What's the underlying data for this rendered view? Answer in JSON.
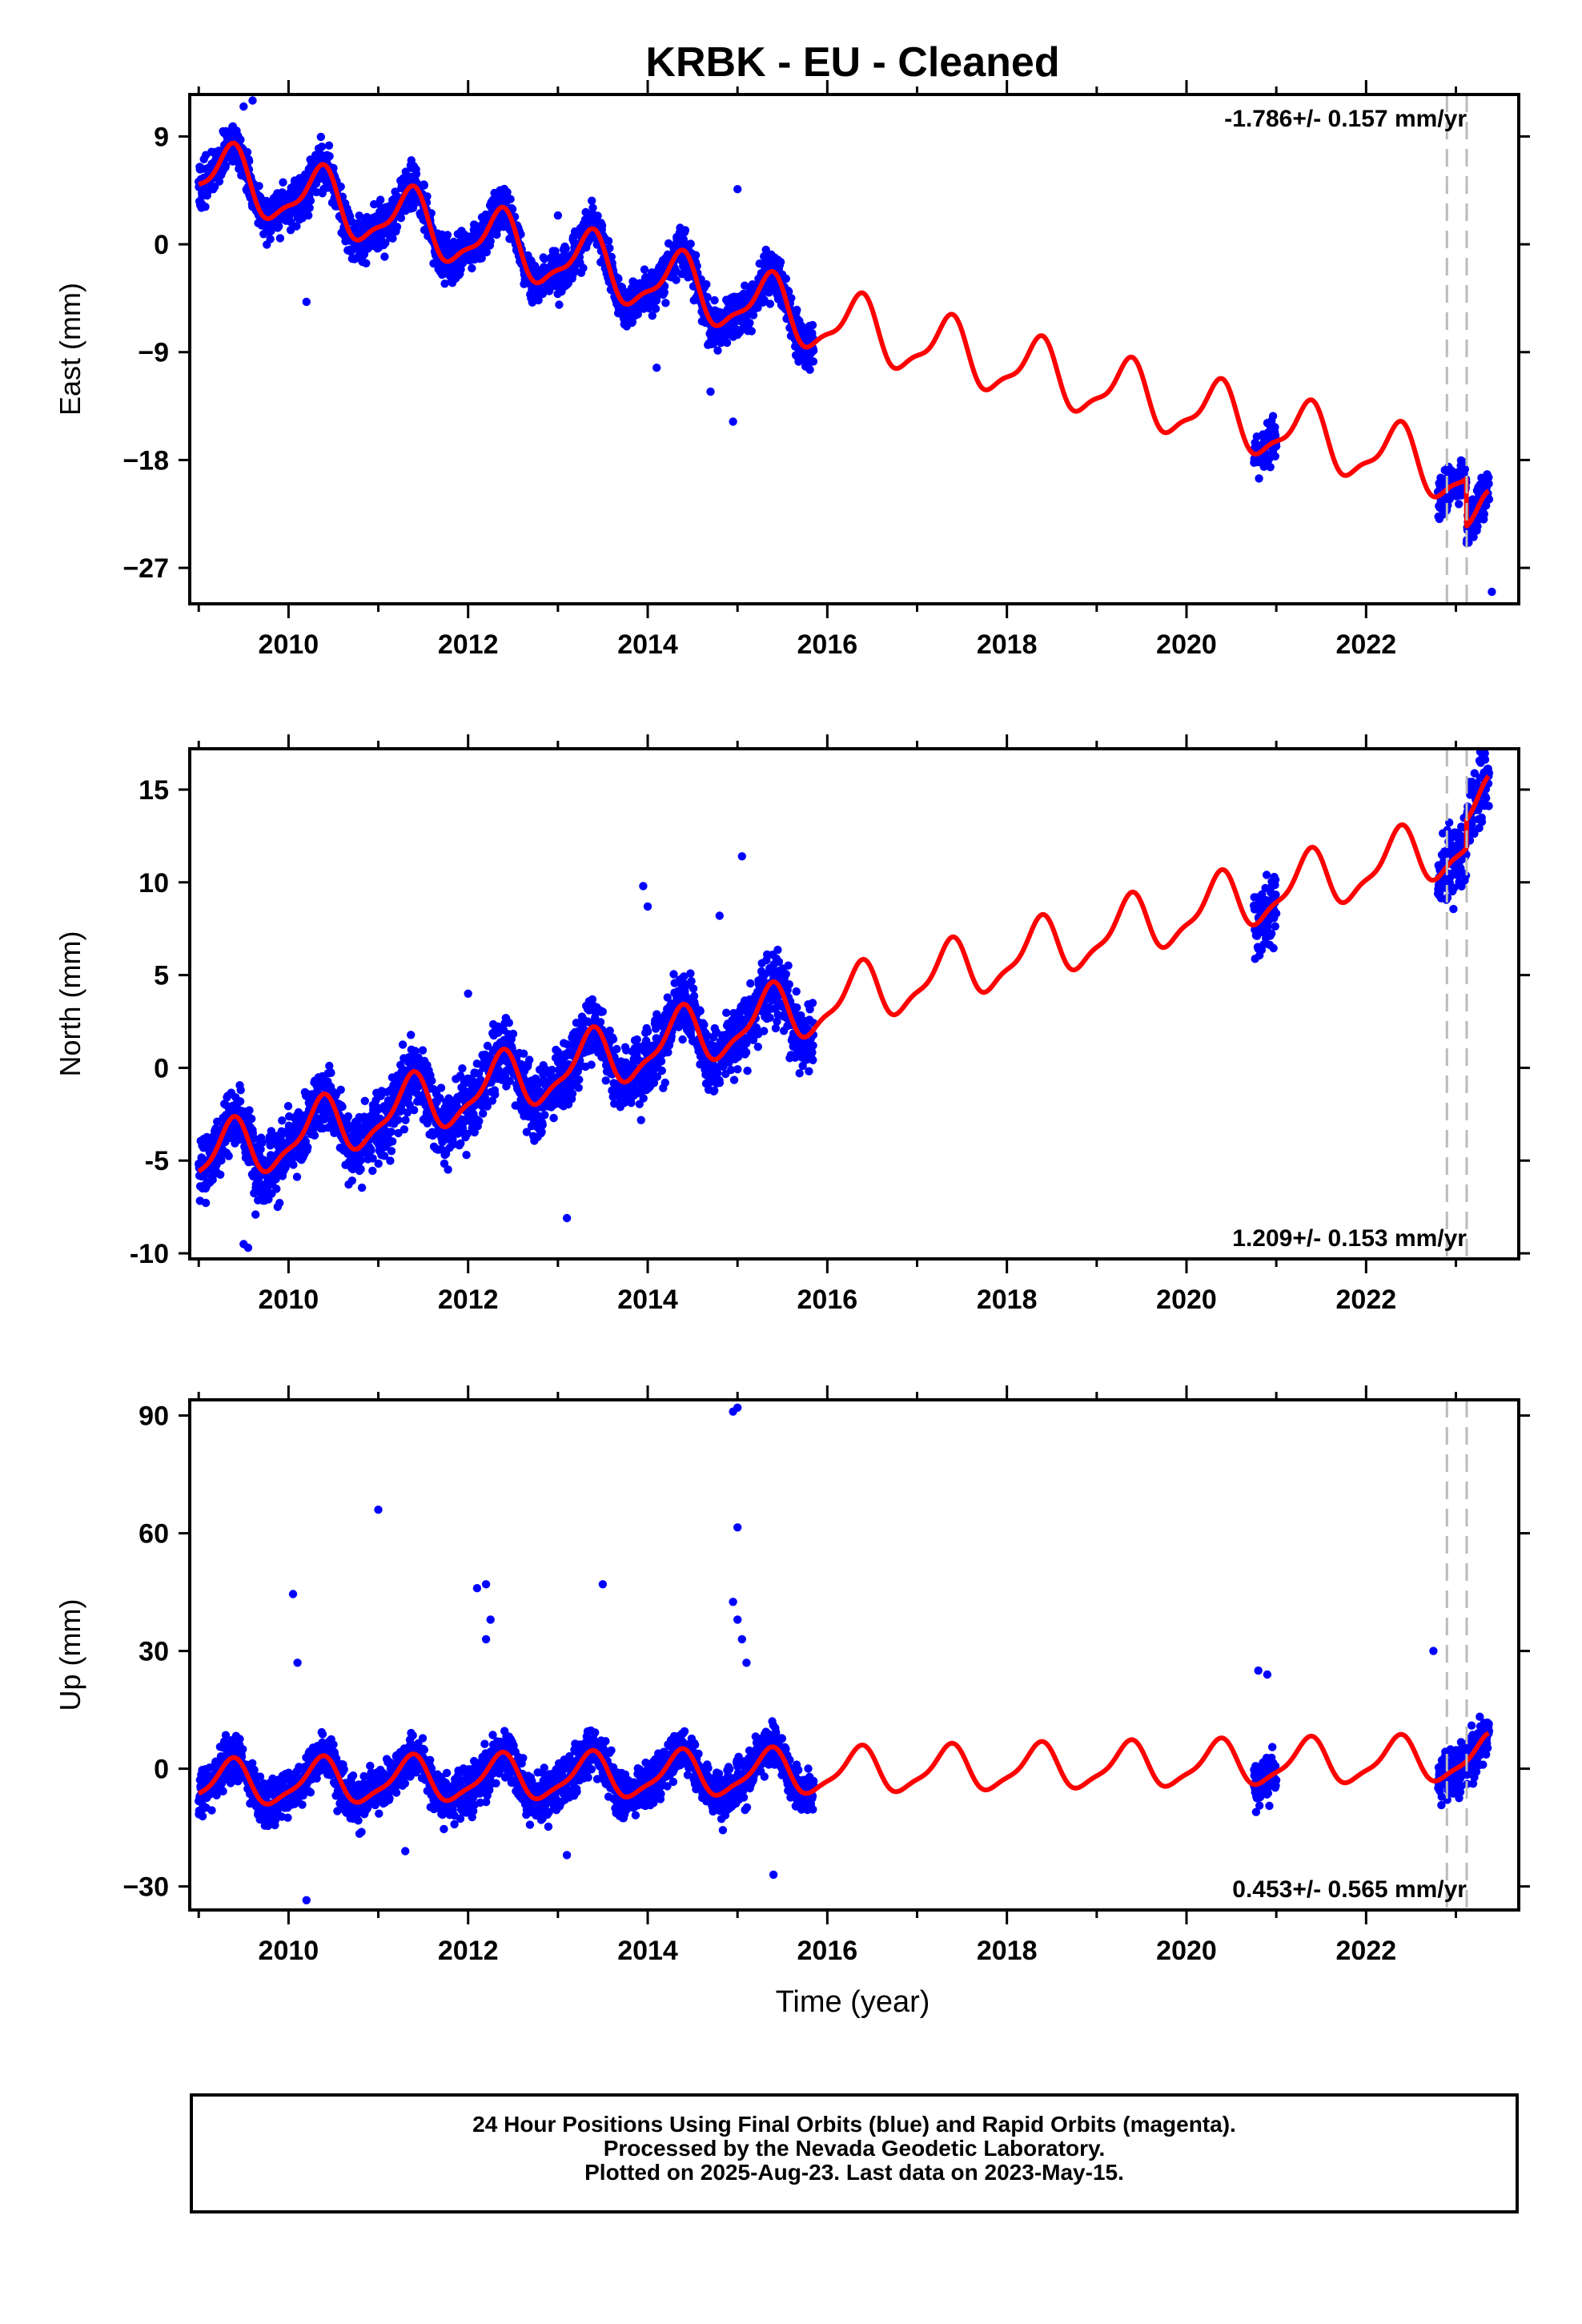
{
  "colors": {
    "data": "#0000ff",
    "model": "#ff0000",
    "offset": "#bbbbbb",
    "axis": "#000000"
  },
  "chart_data": {
    "title": "KRBK  - EU - Cleaned",
    "xlabel": "Time (year)",
    "xlim": [
      2008.9,
      2023.7
    ],
    "x_ticks": [
      "2010",
      "2012",
      "2014",
      "2016",
      "2018",
      "2020",
      "2022"
    ],
    "offset_lines": [
      2022.9,
      2023.12
    ],
    "data_segments": [
      [
        2009.0,
        2015.85
      ],
      [
        2020.75,
        2021.0
      ],
      [
        2022.8,
        2023.37
      ]
    ],
    "panels": [
      {
        "type": "scatter",
        "component": "east",
        "ylabel": "East (mm)",
        "ylim": [
          -30,
          12.5
        ],
        "y_ticks": [
          9,
          0,
          -9,
          -18,
          -27
        ],
        "y_tick_labels": [
          "9",
          "0",
          "−9",
          "−18",
          "−27"
        ],
        "rate_label": "-1.786+/- 0.157 mm/yr",
        "rate_position": "top-right",
        "model": {
          "rate": -1.786,
          "y_at_2009": 6.0,
          "annual_amplitude": 2.5,
          "semiannual_amplitude": 0.8,
          "step_at_2023_12": -4.0
        },
        "scatter": {
          "noise": 1.3
        },
        "outliers": [
          [
            2009.5,
            11.5
          ],
          [
            2009.6,
            12.0
          ],
          [
            2010.2,
            -4.8
          ],
          [
            2014.7,
            -12.3
          ],
          [
            2014.95,
            -14.8
          ],
          [
            2015.0,
            4.6
          ],
          [
            2023.4,
            -29.0
          ],
          [
            2013.0,
            2.4
          ],
          [
            2012.3,
            3.3
          ],
          [
            2014.1,
            -10.3
          ]
        ]
      },
      {
        "type": "scatter",
        "component": "north",
        "ylabel": "North (mm)",
        "ylim": [
          -10.3,
          17.2
        ],
        "y_ticks": [
          15,
          10,
          5,
          0,
          -5,
          -10
        ],
        "y_tick_labels": [
          "15",
          "10",
          "5",
          "0",
          "-5",
          "-10"
        ],
        "rate_label": "1.209+/- 0.153 mm/yr",
        "rate_position": "bottom-right",
        "model": {
          "rate": 1.209,
          "y_at_2009": -5.0,
          "annual_amplitude": 1.5,
          "semiannual_amplitude": 0.5,
          "step_at_2023_12": 1.5
        },
        "scatter": {
          "noise": 1.3
        },
        "outliers": [
          [
            2009.5,
            -9.5
          ],
          [
            2009.55,
            -9.7
          ],
          [
            2013.1,
            -8.1
          ],
          [
            2013.95,
            9.8
          ],
          [
            2014.8,
            8.2
          ],
          [
            2015.05,
            11.4
          ],
          [
            2014.0,
            8.7
          ],
          [
            2012.0,
            4.0
          ]
        ]
      },
      {
        "type": "scatter",
        "component": "up",
        "ylabel": "Up (mm)",
        "ylim": [
          -36,
          94
        ],
        "y_ticks": [
          90,
          60,
          30,
          0,
          -30
        ],
        "y_tick_labels": [
          "90",
          "60",
          "30",
          "0",
          "−30"
        ],
        "rate_label": "0.453+/- 0.565 mm/yr",
        "rate_position": "bottom-right",
        "model": {
          "rate": 0.453,
          "y_at_2009": -4.0,
          "annual_amplitude": 5.5,
          "semiannual_amplitude": 1.5,
          "step_at_2023_12": 0
        },
        "scatter": {
          "noise": 4.2
        },
        "outliers": [
          [
            2010.05,
            44.5
          ],
          [
            2010.1,
            27.0
          ],
          [
            2010.2,
            -33.5
          ],
          [
            2011.0,
            66.0
          ],
          [
            2012.1,
            46.0
          ],
          [
            2012.2,
            47.0
          ],
          [
            2012.25,
            38.0
          ],
          [
            2012.2,
            33.0
          ],
          [
            2013.5,
            47.0
          ],
          [
            2014.95,
            91.0
          ],
          [
            2015.0,
            92.0
          ],
          [
            2015.0,
            61.5
          ],
          [
            2014.95,
            42.5
          ],
          [
            2015.0,
            38.0
          ],
          [
            2015.05,
            33.0
          ],
          [
            2015.1,
            27.0
          ],
          [
            2015.4,
            -27.0
          ],
          [
            2013.1,
            -22.0
          ],
          [
            2011.3,
            -21.0
          ],
          [
            2022.75,
            30.0
          ],
          [
            2020.8,
            25.0
          ],
          [
            2020.9,
            24.0
          ]
        ]
      }
    ]
  },
  "footer": {
    "line1": "24 Hour Positions Using Final Orbits (blue) and Rapid Orbits (magenta).",
    "line2": "Processed by the Nevada Geodetic Laboratory.",
    "line3": "Plotted on 2025-Aug-23. Last data on 2023-May-15."
  }
}
